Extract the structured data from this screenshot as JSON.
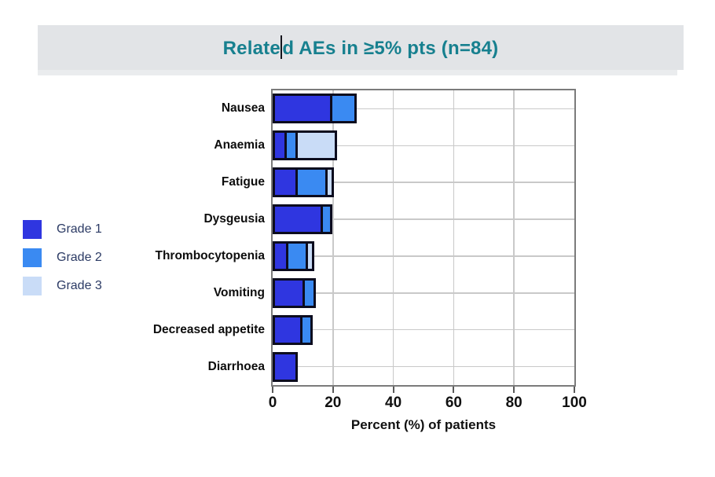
{
  "title": {
    "full": "Related AEs in ≥5% pts (n=84)",
    "before_caret": "Relate",
    "after_caret": "d AEs in ≥5% pts (n=84)"
  },
  "legend": {
    "items": [
      {
        "label": "Grade 1",
        "color": "#2f36e0"
      },
      {
        "label": "Grade 2",
        "color": "#3a8af2"
      },
      {
        "label": "Grade 3",
        "color": "#c9dcf7"
      }
    ]
  },
  "chart_data": {
    "type": "bar",
    "orientation": "horizontal",
    "stacked": true,
    "title": "Related AEs in ≥5% pts (n=84)",
    "categories": [
      "Nausea",
      "Anaemia",
      "Fatigue",
      "Dysgeusia",
      "Thrombocytopenia",
      "Vomiting",
      "Decreased appetite",
      "Diarrhoea"
    ],
    "series": [
      {
        "name": "Grade 1",
        "color": "#2f36e0",
        "values": [
          19,
          4,
          7.5,
          16,
          4.5,
          10,
          9,
          7.5
        ]
      },
      {
        "name": "Grade 2",
        "color": "#3a8af2",
        "values": [
          8,
          3.5,
          10,
          3,
          6.5,
          3.5,
          3.5,
          0
        ]
      },
      {
        "name": "Grade 3",
        "color": "#c9dcf7",
        "values": [
          0,
          13,
          2,
          0,
          2,
          0,
          0,
          0
        ]
      }
    ],
    "xlabel": "Percent (%) of patients",
    "x_ticks": [
      0,
      20,
      40,
      60,
      80,
      100
    ],
    "xlim": [
      0,
      100
    ],
    "grid": true,
    "legend_position": "left",
    "bar_outline_color": "#0c0c1e",
    "gridline_color": "#c9c9c9",
    "plot_border_color": "#7b7b7b",
    "title_color": "#17808f",
    "banner_color": "#e2e4e7"
  }
}
